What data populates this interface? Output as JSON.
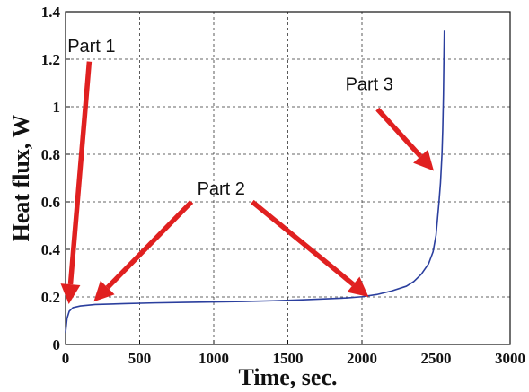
{
  "chart_data": {
    "type": "line",
    "title": "",
    "xlabel": "Time, sec.",
    "ylabel": "Heat flux, W",
    "xlim": [
      0,
      3000
    ],
    "ylim": [
      0,
      1.4
    ],
    "xticks": [
      0,
      500,
      1000,
      1500,
      2000,
      2500,
      3000
    ],
    "yticks": [
      0,
      0.2,
      0.4,
      0.6,
      0.8,
      1.0,
      1.2,
      1.4
    ],
    "xtick_labels": [
      "0",
      "500",
      "1000",
      "1500",
      "2000",
      "2500",
      "3000"
    ],
    "ytick_labels": [
      "0",
      "0.2",
      "0.4",
      "0.6",
      "0.8",
      "1",
      "1.2",
      "1.4"
    ],
    "grid": true,
    "series": [
      {
        "color": "#2b3f9e",
        "x": [
          0,
          10,
          25,
          50,
          100,
          200,
          400,
          600,
          800,
          1000,
          1200,
          1400,
          1600,
          1800,
          1900,
          2000,
          2100,
          2200,
          2300,
          2350,
          2400,
          2450,
          2480,
          2500,
          2510,
          2520,
          2530,
          2540,
          2545,
          2550,
          2553,
          2556
        ],
        "y": [
          0.05,
          0.11,
          0.14,
          0.155,
          0.162,
          0.168,
          0.172,
          0.175,
          0.177,
          0.179,
          0.181,
          0.184,
          0.188,
          0.193,
          0.196,
          0.201,
          0.21,
          0.225,
          0.245,
          0.265,
          0.295,
          0.34,
          0.39,
          0.46,
          0.53,
          0.6,
          0.68,
          0.8,
          0.9,
          1.05,
          1.2,
          1.32
        ]
      }
    ],
    "annotations": [
      {
        "text": "Part 1",
        "x": 175,
        "y": 1.23
      },
      {
        "text": "Part 2",
        "x": 1050,
        "y": 0.63
      },
      {
        "text": "Part 3",
        "x": 2050,
        "y": 1.07
      }
    ],
    "arrows": [
      {
        "from": [
          160,
          1.19
        ],
        "to": [
          22,
          0.17
        ]
      },
      {
        "from": [
          850,
          0.6
        ],
        "to": [
          190,
          0.18
        ]
      },
      {
        "from": [
          1260,
          0.6
        ],
        "to": [
          2045,
          0.2
        ]
      },
      {
        "from": [
          2105,
          0.99
        ],
        "to": [
          2485,
          0.73
        ]
      }
    ],
    "arrow_color": "#e02020"
  }
}
